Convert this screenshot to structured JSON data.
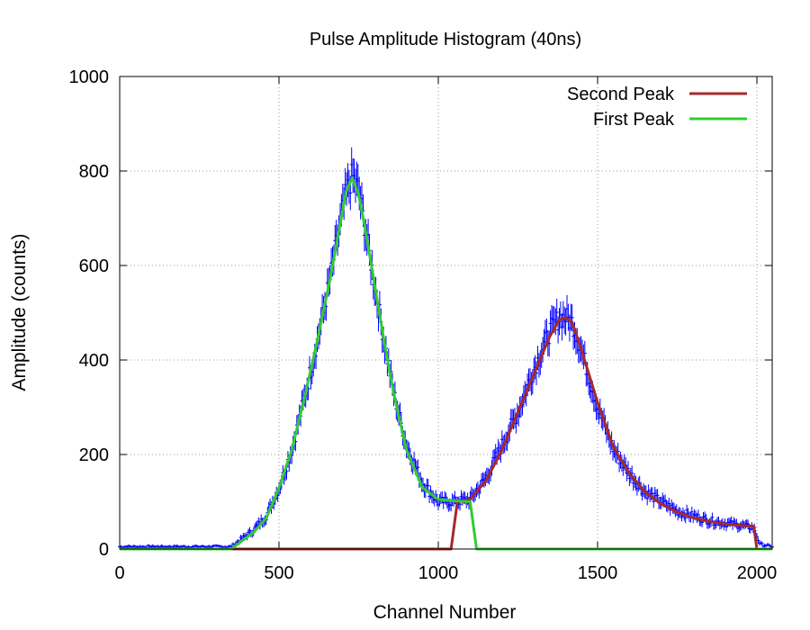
{
  "chart_data": {
    "type": "line",
    "title": "Pulse Amplitude Histogram (40ns)",
    "xlabel": "Channel Number",
    "ylabel": "Amplitude (counts)",
    "xlim": [
      0,
      2048
    ],
    "ylim": [
      0,
      1000
    ],
    "x_ticks": [
      0,
      500,
      1000,
      1500,
      2000
    ],
    "y_ticks": [
      0,
      200,
      400,
      600,
      800,
      1000
    ],
    "grid": true,
    "legend_position": "top-right",
    "data_points": {
      "name": "",
      "color": "#0000ff",
      "style": "points with error bars",
      "x": [
        0,
        50,
        100,
        150,
        200,
        250,
        300,
        350,
        380,
        420,
        460,
        500,
        540,
        580,
        620,
        660,
        690,
        710,
        730,
        750,
        770,
        800,
        830,
        860,
        900,
        950,
        1000,
        1050,
        1100,
        1150,
        1200,
        1250,
        1300,
        1350,
        1380,
        1400,
        1420,
        1450,
        1500,
        1550,
        1600,
        1650,
        1700,
        1750,
        1800,
        1850,
        1900,
        1950,
        1990,
        2010,
        2048
      ],
      "y": [
        5,
        5,
        5,
        5,
        5,
        5,
        5,
        5,
        20,
        40,
        70,
        130,
        210,
        320,
        440,
        570,
        680,
        750,
        790,
        760,
        680,
        560,
        440,
        330,
        220,
        140,
        100,
        100,
        105,
        150,
        220,
        290,
        380,
        460,
        490,
        490,
        480,
        420,
        300,
        210,
        160,
        120,
        100,
        80,
        70,
        60,
        55,
        50,
        45,
        10,
        5
      ]
    },
    "series": [
      {
        "name": "Second Peak",
        "color": "#a52a2a",
        "x": [
          0,
          1040,
          1060,
          1100,
          1150,
          1200,
          1250,
          1300,
          1350,
          1380,
          1400,
          1420,
          1450,
          1500,
          1550,
          1600,
          1650,
          1700,
          1750,
          1800,
          1850,
          1900,
          1950,
          1990,
          2000,
          2048
        ],
        "y": [
          0,
          0,
          100,
          105,
          145,
          210,
          290,
          370,
          450,
          485,
          490,
          480,
          420,
          310,
          215,
          160,
          120,
          95,
          78,
          66,
          58,
          53,
          50,
          48,
          0,
          0
        ]
      },
      {
        "name": "First Peak",
        "color": "#33cc33",
        "x": [
          0,
          350,
          380,
          420,
          460,
          500,
          540,
          580,
          620,
          660,
          690,
          710,
          730,
          750,
          770,
          800,
          830,
          860,
          900,
          950,
          1000,
          1050,
          1100,
          1120,
          2048
        ],
        "y": [
          0,
          0,
          15,
          35,
          65,
          130,
          210,
          320,
          440,
          570,
          680,
          755,
          785,
          750,
          680,
          560,
          440,
          330,
          210,
          130,
          105,
          102,
          100,
          0,
          0
        ]
      }
    ]
  }
}
